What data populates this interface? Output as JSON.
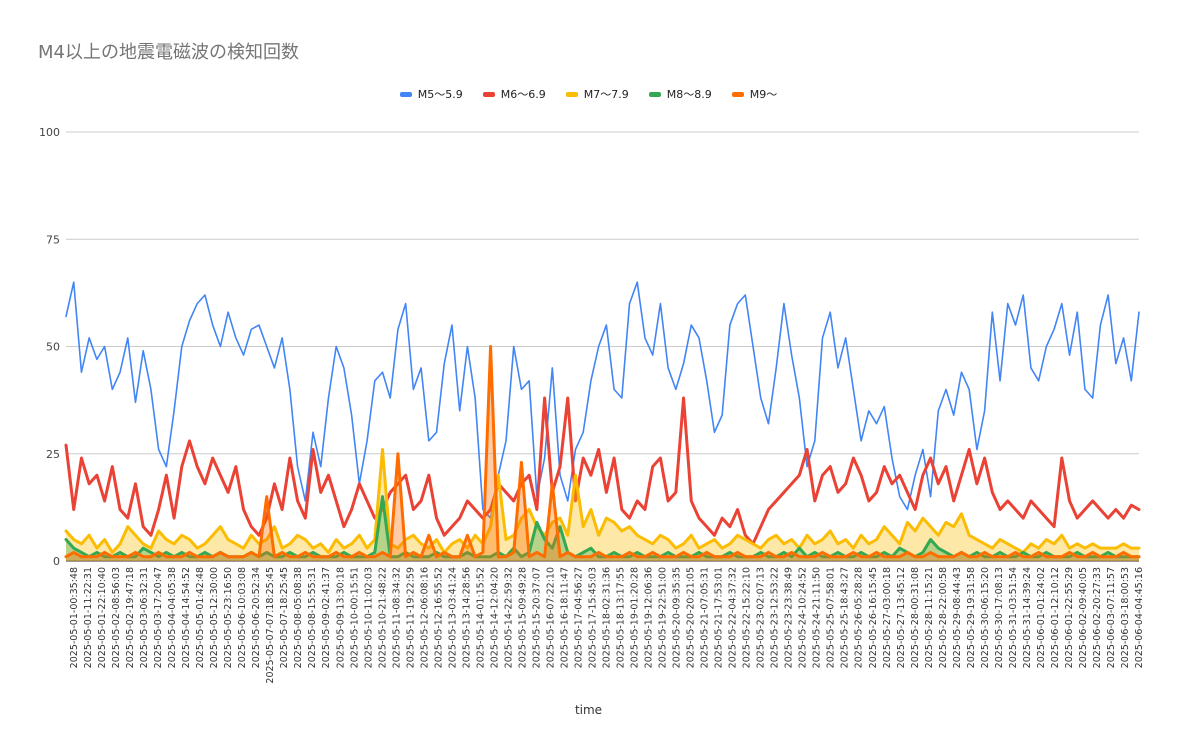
{
  "chart_data": {
    "type": "line",
    "title": "M4以上の地震電磁波の検知回数",
    "xlabel": "time",
    "ylabel": "",
    "ylim": [
      0,
      100
    ],
    "yticks": [
      0,
      25,
      50,
      75,
      100
    ],
    "grid": true,
    "legend_position": "top",
    "x_tick_labels": [
      "2025-05-01-00:35:48",
      "2025-05-01-11:22:31",
      "2025-05-01-22:10:40",
      "2025-05-02-08:56:03",
      "2025-05-02-19:47:18",
      "2025-05-03-06:32:31",
      "2025-05-03-17:20:47",
      "2025-05-04-04:05:38",
      "2025-05-04-14:54:52",
      "2025-05-05-01:42:48",
      "2025-05-05-12:30:00",
      "2025-05-05-23:16:50",
      "2025-05-06-10:03:08",
      "2025-05-06-20:52:34",
      "2025-05-07-07:18:25:45",
      "2025-05-07-18:25:45",
      "2025-05-08-05:08:38",
      "2025-05-08-15:55:31",
      "2025-05-09-02:41:37",
      "2025-05-09-13:30:18",
      "2025-05-10-00:15:51",
      "2025-05-10-11:02:03",
      "2025-05-10-21:48:22",
      "2025-05-11-08:34:32",
      "2025-05-11-19:22:59",
      "2025-05-12-06:08:16",
      "2025-05-12-16:55:52",
      "2025-05-13-03:41:24",
      "2025-05-13-14:28:56",
      "2025-05-14-01:15:52",
      "2025-05-14-12:04:20",
      "2025-05-14-22:59:32",
      "2025-05-15-09:49:28",
      "2025-05-15-20:37:07",
      "2025-05-16-07:22:10",
      "2025-05-16-18:11:47",
      "2025-05-17-04:56:27",
      "2025-05-17-15:45:03",
      "2025-05-18-02:31:36",
      "2025-05-18-13:17:55",
      "2025-05-19-01:20:28",
      "2025-05-19-12:06:36",
      "2025-05-19-22:51:00",
      "2025-05-20-09:35:35",
      "2025-05-20-20:21:05",
      "2025-05-21-07:05:31",
      "2025-05-21-17:53:01",
      "2025-05-22-04:37:32",
      "2025-05-22-15:22:10",
      "2025-05-23-02:07:13",
      "2025-05-23-12:53:22",
      "2025-05-23-23:38:49",
      "2025-05-24-10:24:52",
      "2025-05-24-21:11:50",
      "2025-05-25-07:58:01",
      "2025-05-25-18:43:27",
      "2025-05-26-05:28:28",
      "2025-05-26-16:15:45",
      "2025-05-27-03:00:18",
      "2025-05-27-13:45:12",
      "2025-05-28-00:31:08",
      "2025-05-28-11:15:21",
      "2025-05-28-22:00:58",
      "2025-05-29-08:44:43",
      "2025-05-29-19:31:58",
      "2025-05-30-06:15:20",
      "2025-05-30-17:08:13",
      "2025-05-31-03:51:54",
      "2025-05-31-14:39:24",
      "2025-06-01-01:24:02",
      "2025-06-01-12:10:12",
      "2025-06-01-22:55:29",
      "2025-06-02-09:40:05",
      "2025-06-02-20:27:33",
      "2025-06-03-07:11:57",
      "2025-06-03-18:00:53",
      "2025-06-04-04:45:16"
    ],
    "series": [
      {
        "name": "M5〜5.9",
        "color": "#4285F4",
        "values": [
          57,
          65,
          44,
          52,
          47,
          50,
          40,
          44,
          52,
          37,
          49,
          40,
          26,
          22,
          35,
          50,
          56,
          60,
          62,
          55,
          50,
          58,
          52,
          48,
          54,
          55,
          50,
          45,
          52,
          40,
          22,
          14,
          30,
          22,
          38,
          50,
          45,
          34,
          18,
          28,
          42,
          44,
          38,
          54,
          60,
          40,
          45,
          28,
          30,
          46,
          55,
          35,
          50,
          38,
          12,
          10,
          20,
          28,
          50,
          40,
          42,
          15,
          24,
          45,
          20,
          14,
          26,
          30,
          42,
          50,
          55,
          40,
          38,
          60,
          65,
          52,
          48,
          60,
          45,
          40,
          46,
          55,
          52,
          42,
          30,
          34,
          55,
          60,
          62,
          50,
          38,
          32,
          45,
          60,
          48,
          38,
          22,
          28,
          52,
          58,
          45,
          52,
          40,
          28,
          35,
          32,
          36,
          24,
          15,
          12,
          20,
          26,
          15,
          35,
          40,
          34,
          44,
          40,
          26,
          35,
          58,
          42,
          60,
          55,
          62,
          45,
          42,
          50,
          54,
          60,
          48,
          58,
          40,
          38,
          55,
          62,
          46,
          52,
          42,
          58
        ]
      },
      {
        "name": "M6〜6.9",
        "color": "#EA4335",
        "values": [
          27,
          12,
          24,
          18,
          20,
          14,
          22,
          12,
          10,
          18,
          8,
          6,
          12,
          20,
          10,
          22,
          28,
          22,
          18,
          24,
          20,
          16,
          22,
          12,
          8,
          6,
          10,
          18,
          12,
          24,
          14,
          10,
          26,
          16,
          20,
          14,
          8,
          12,
          18,
          14,
          10,
          12,
          16,
          18,
          20,
          12,
          14,
          20,
          10,
          6,
          8,
          10,
          14,
          12,
          10,
          12,
          18,
          16,
          14,
          18,
          20,
          12,
          38,
          16,
          22,
          38,
          14,
          24,
          20,
          26,
          16,
          24,
          12,
          10,
          14,
          12,
          22,
          24,
          14,
          16,
          38,
          14,
          10,
          8,
          6,
          10,
          8,
          12,
          6,
          4,
          8,
          12,
          14,
          16,
          18,
          20,
          26,
          14,
          20,
          22,
          16,
          18,
          24,
          20,
          14,
          16,
          22,
          18,
          20,
          16,
          12,
          20,
          24,
          18,
          22,
          14,
          20,
          26,
          18,
          24,
          16,
          12,
          14,
          12,
          10,
          14,
          12,
          10,
          8,
          24,
          14,
          10,
          12,
          14,
          12,
          10,
          12,
          10,
          13,
          12
        ]
      },
      {
        "name": "M7〜7.9",
        "color": "#FBBC04",
        "values": [
          7,
          5,
          4,
          6,
          3,
          5,
          2,
          4,
          8,
          6,
          4,
          3,
          7,
          5,
          4,
          6,
          5,
          3,
          4,
          6,
          8,
          5,
          4,
          3,
          6,
          4,
          5,
          8,
          3,
          4,
          6,
          5,
          3,
          4,
          2,
          5,
          3,
          4,
          6,
          3,
          5,
          26,
          4,
          3,
          5,
          6,
          4,
          3,
          5,
          2,
          4,
          5,
          3,
          6,
          4,
          8,
          20,
          5,
          6,
          10,
          12,
          8,
          6,
          9,
          10,
          6,
          20,
          8,
          12,
          6,
          10,
          9,
          7,
          8,
          6,
          5,
          4,
          6,
          5,
          3,
          4,
          6,
          3,
          4,
          5,
          3,
          4,
          6,
          5,
          4,
          3,
          5,
          6,
          4,
          5,
          3,
          6,
          4,
          5,
          7,
          4,
          5,
          3,
          6,
          4,
          5,
          8,
          6,
          4,
          9,
          7,
          10,
          8,
          6,
          9,
          8,
          11,
          6,
          5,
          4,
          3,
          5,
          4,
          3,
          2,
          4,
          3,
          5,
          4,
          6,
          3,
          4,
          3,
          4,
          3,
          3,
          3,
          4,
          3,
          3
        ]
      },
      {
        "name": "M8〜8.9",
        "color": "#34A853",
        "values": [
          5,
          3,
          2,
          1,
          2,
          1,
          1,
          2,
          1,
          1,
          3,
          2,
          1,
          2,
          1,
          2,
          1,
          1,
          2,
          1,
          2,
          1,
          1,
          1,
          2,
          1,
          2,
          1,
          1,
          2,
          1,
          1,
          2,
          1,
          1,
          1,
          2,
          1,
          1,
          1,
          2,
          15,
          1,
          1,
          2,
          1,
          1,
          1,
          2,
          1,
          1,
          1,
          2,
          1,
          1,
          1,
          2,
          1,
          3,
          1,
          2,
          9,
          5,
          3,
          8,
          2,
          1,
          2,
          3,
          1,
          1,
          2,
          1,
          1,
          2,
          1,
          1,
          1,
          2,
          1,
          1,
          1,
          2,
          1,
          1,
          1,
          2,
          1,
          1,
          1,
          2,
          1,
          1,
          2,
          1,
          3,
          1,
          2,
          1,
          1,
          2,
          1,
          1,
          2,
          1,
          1,
          2,
          1,
          3,
          2,
          1,
          2,
          5,
          3,
          2,
          1,
          2,
          1,
          2,
          1,
          1,
          2,
          1,
          1,
          2,
          1,
          1,
          2,
          1,
          1,
          1,
          2,
          1,
          1,
          1,
          2,
          1,
          1,
          1,
          1
        ]
      },
      {
        "name": "M9〜",
        "color": "#FF6D01",
        "values": [
          1,
          2,
          1,
          1,
          1,
          2,
          1,
          1,
          1,
          2,
          1,
          1,
          2,
          1,
          1,
          1,
          2,
          1,
          1,
          1,
          2,
          1,
          1,
          1,
          2,
          1,
          15,
          1,
          2,
          1,
          1,
          2,
          1,
          1,
          1,
          2,
          1,
          1,
          2,
          1,
          1,
          2,
          1,
          25,
          1,
          2,
          1,
          6,
          1,
          2,
          1,
          1,
          6,
          1,
          2,
          50,
          1,
          1,
          2,
          23,
          1,
          2,
          1,
          18,
          1,
          2,
          1,
          1,
          1,
          2,
          1,
          1,
          1,
          2,
          1,
          1,
          2,
          1,
          1,
          1,
          2,
          1,
          1,
          2,
          1,
          1,
          1,
          2,
          1,
          1,
          1,
          2,
          1,
          1,
          2,
          1,
          1,
          1,
          2,
          1,
          1,
          1,
          2,
          1,
          1,
          2,
          1,
          1,
          1,
          2,
          1,
          1,
          2,
          1,
          1,
          1,
          2,
          1,
          1,
          2,
          1,
          1,
          1,
          2,
          1,
          1,
          2,
          1,
          1,
          1,
          2,
          1,
          1,
          2,
          1,
          1,
          1,
          2,
          1,
          1
        ]
      }
    ]
  }
}
